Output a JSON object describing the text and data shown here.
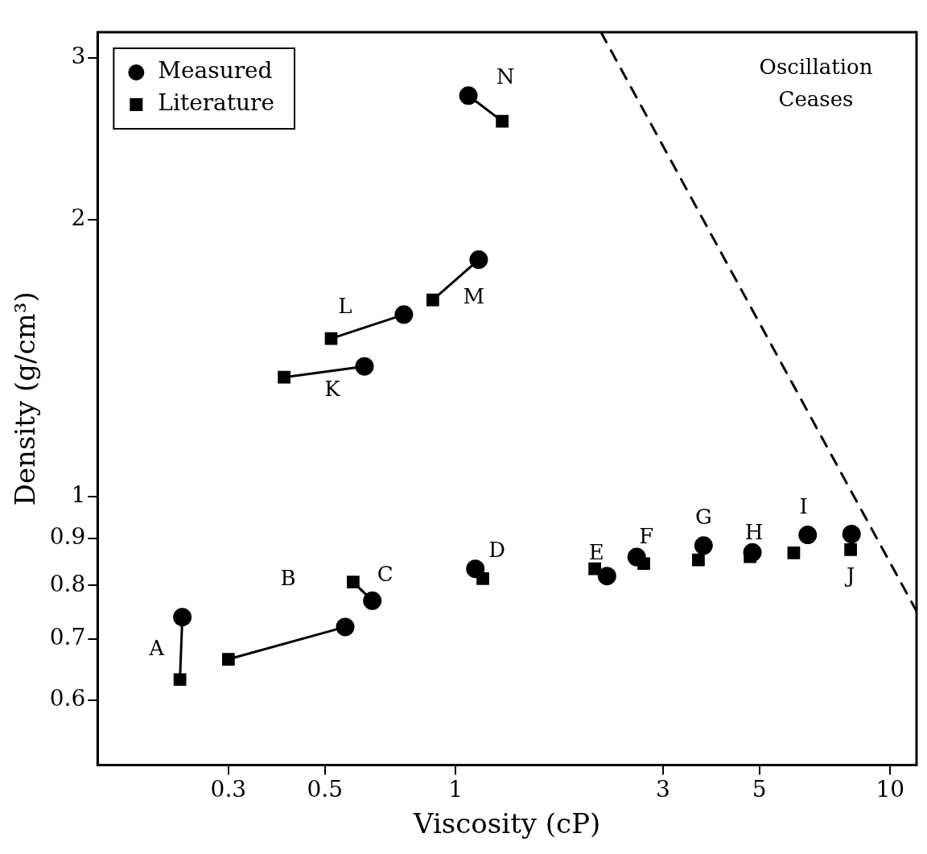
{
  "chart_data": {
    "type": "scatter",
    "xlabel": "Viscosity (cP)",
    "ylabel": "Density (g/cm³)",
    "log": "xy",
    "grid": false,
    "legend": "top left",
    "xlim": [
      0.15,
      11.5
    ],
    "xticks": [
      0.3,
      0.5,
      1,
      3,
      5,
      10
    ],
    "ylim": [
      0.51,
      3.2
    ],
    "yticks": [
      0.6,
      0.7,
      0.8,
      0.9,
      1,
      2,
      3
    ],
    "series": [
      {
        "name": "Measured",
        "marker": "circle",
        "color": "#000000",
        "x": [
          0.235,
          0.557,
          0.643,
          1.11,
          2.23,
          2.61,
          3.72,
          4.82,
          6.46,
          8.15,
          0.617,
          0.76,
          1.13,
          1.07
        ],
        "values": [
          0.739,
          0.721,
          0.77,
          0.834,
          0.819,
          0.859,
          0.884,
          0.869,
          0.908,
          0.91,
          1.385,
          1.577,
          1.81,
          2.73
        ]
      },
      {
        "name": "Literature",
        "marker": "square",
        "color": "#000000",
        "x": [
          0.232,
          0.3,
          0.581,
          1.155,
          2.09,
          2.71,
          3.62,
          4.76,
          6.0,
          8.11,
          0.403,
          0.517,
          0.886,
          1.28
        ],
        "values": [
          0.632,
          0.665,
          0.807,
          0.814,
          0.834,
          0.845,
          0.853,
          0.86,
          0.868,
          0.875,
          1.348,
          1.485,
          1.636,
          2.56
        ]
      },
      {
        "type": "line",
        "marker": "none",
        "color": "#000000",
        "x": [
          0.235,
          0.232
        ],
        "values": [
          0.739,
          0.632
        ]
      },
      {
        "type": "line",
        "marker": "none",
        "color": "#000000",
        "x": [
          0.3,
          0.557
        ],
        "values": [
          0.665,
          0.721
        ]
      },
      {
        "type": "line",
        "marker": "none",
        "color": "#000000",
        "x": [
          0.581,
          0.643
        ],
        "values": [
          0.807,
          0.77
        ]
      },
      {
        "type": "line",
        "marker": "none",
        "color": "#000000",
        "x": [
          0.403,
          0.617
        ],
        "values": [
          1.348,
          1.385
        ]
      },
      {
        "type": "line",
        "marker": "none",
        "color": "#000000",
        "x": [
          0.517,
          0.76
        ],
        "values": [
          1.485,
          1.577
        ]
      },
      {
        "type": "line",
        "marker": "none",
        "color": "#000000",
        "x": [
          0.886,
          1.13
        ],
        "values": [
          1.636,
          1.81
        ]
      },
      {
        "type": "line",
        "marker": "none",
        "color": "#000000",
        "x": [
          1.07,
          1.28
        ],
        "values": [
          2.73,
          2.56
        ]
      },
      {
        "type": "line",
        "marker": "none",
        "line_style": "dashed",
        "color": "#000000",
        "x": [
          2.16,
          11.5
        ],
        "values": [
          3.2,
          0.75
        ]
      }
    ],
    "annotations": [
      {
        "text": "A",
        "x": 0.235,
        "y": 0.739
      },
      {
        "text": "B",
        "x": 0.557,
        "y": 0.721
      },
      {
        "text": "C",
        "x": 0.643,
        "y": 0.77
      },
      {
        "text": "D",
        "x": 1.11,
        "y": 0.834
      },
      {
        "text": "E",
        "x": 2.23,
        "y": 0.819
      },
      {
        "text": "F",
        "x": 2.61,
        "y": 0.859
      },
      {
        "text": "G",
        "x": 3.72,
        "y": 0.884
      },
      {
        "text": "H",
        "x": 4.82,
        "y": 0.869
      },
      {
        "text": "I",
        "x": 6.46,
        "y": 0.908
      },
      {
        "text": "J",
        "x": 8.15,
        "y": 0.91
      },
      {
        "text": "K",
        "x": 0.617,
        "y": 1.385
      },
      {
        "text": "L",
        "x": 0.76,
        "y": 1.577
      },
      {
        "text": "M",
        "x": 1.13,
        "y": 1.81
      },
      {
        "text": "N",
        "x": 1.07,
        "y": 2.73
      },
      "Oscillation Ceases"
    ]
  }
}
